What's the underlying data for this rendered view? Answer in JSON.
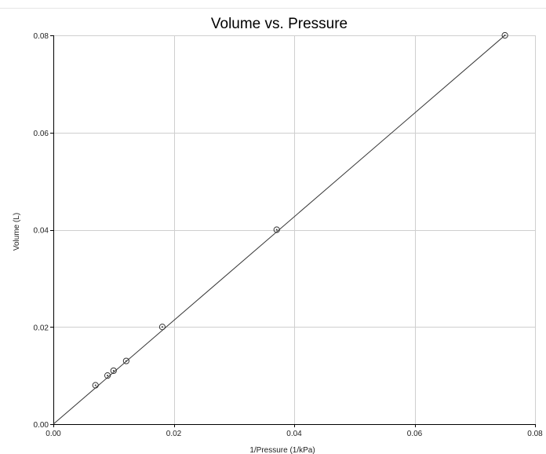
{
  "chart_data": {
    "type": "scatter",
    "title": "Volume vs. Pressure",
    "xlabel": "1/Pressure  (1/kPa)",
    "ylabel": "Volume (L)",
    "xlim": [
      0.0,
      0.08
    ],
    "ylim": [
      0.0,
      0.08
    ],
    "x_ticks": [
      {
        "value": 0.0,
        "label": "0.00"
      },
      {
        "value": 0.02,
        "label": "0.02"
      },
      {
        "value": 0.04,
        "label": "0.04"
      },
      {
        "value": 0.06,
        "label": "0.06"
      },
      {
        "value": 0.08,
        "label": "0.08"
      }
    ],
    "y_ticks": [
      {
        "value": 0.0,
        "label": "0.00"
      },
      {
        "value": 0.02,
        "label": "0.02"
      },
      {
        "value": 0.04,
        "label": "0.04"
      },
      {
        "value": 0.06,
        "label": "0.06"
      },
      {
        "value": 0.08,
        "label": "0.08"
      }
    ],
    "grid": true,
    "legend": "none",
    "series": [
      {
        "marker": "circle-dot",
        "points": [
          {
            "x": 0.007,
            "y": 0.008
          },
          {
            "x": 0.009,
            "y": 0.01
          },
          {
            "x": 0.01,
            "y": 0.011
          },
          {
            "x": 0.0121,
            "y": 0.013
          },
          {
            "x": 0.0181,
            "y": 0.02
          },
          {
            "x": 0.0371,
            "y": 0.04
          },
          {
            "x": 0.075,
            "y": 0.08
          }
        ]
      }
    ],
    "fit_line": {
      "from": {
        "x": 0.0,
        "y": 0.0
      },
      "to": {
        "x": 0.075,
        "y": 0.08
      }
    },
    "colors": {
      "grid": "#cfcfcf",
      "axis": "#000000",
      "line": "#333333",
      "marker": "#333333"
    }
  }
}
